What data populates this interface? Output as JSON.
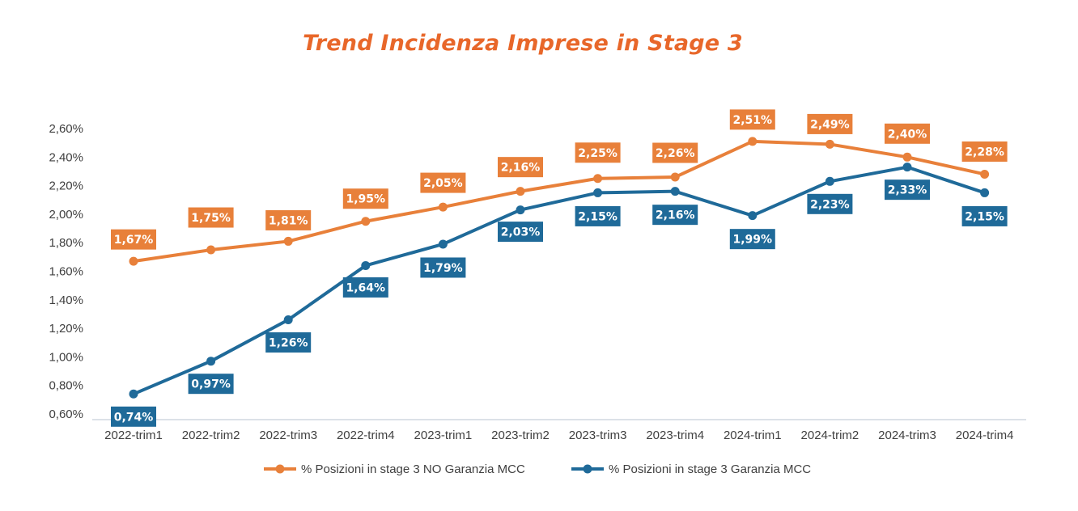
{
  "title": "Trend Incidenza Imprese in Stage 3",
  "chart_data": {
    "type": "line",
    "title": "Trend Incidenza Imprese in Stage 3",
    "xlabel": "",
    "ylabel": "",
    "ylim": [
      0.6,
      2.6
    ],
    "y_ticks": [
      "0,60%",
      "0,80%",
      "1,00%",
      "1,20%",
      "1,40%",
      "1,60%",
      "1,80%",
      "2,00%",
      "2,20%",
      "2,40%",
      "2,60%"
    ],
    "categories": [
      "2022-trim1",
      "2022-trim2",
      "2022-trim3",
      "2022-trim4",
      "2023-trim1",
      "2023-trim2",
      "2023-trim3",
      "2023-trim4",
      "2024-trim1",
      "2024-trim2",
      "2024-trim3",
      "2024-trim4"
    ],
    "grid": false,
    "legend_position": "bottom",
    "series": [
      {
        "name": "% Posizioni in stage 3 NO Garanzia MCC",
        "color": "#e8803a",
        "label_bg": "#e8803a",
        "values": [
          1.67,
          1.75,
          1.81,
          1.95,
          2.05,
          2.16,
          2.25,
          2.26,
          2.51,
          2.49,
          2.4,
          2.28
        ],
        "labels": [
          "1,67%",
          "1,75%",
          "1,81%",
          "1,95%",
          "2,05%",
          "2,16%",
          "2,25%",
          "2,26%",
          "2,51%",
          "2,49%",
          "2,40%",
          "2,28%"
        ]
      },
      {
        "name": "% Posizioni in stage 3 Garanzia MCC",
        "color": "#1f6a99",
        "label_bg": "#1f6a99",
        "values": [
          0.74,
          0.97,
          1.26,
          1.64,
          1.79,
          2.03,
          2.15,
          2.16,
          1.99,
          2.23,
          2.33,
          2.15
        ],
        "labels": [
          "0,74%",
          "0,97%",
          "1,26%",
          "1,64%",
          "1,79%",
          "2,03%",
          "2,15%",
          "2,16%",
          "1,99%",
          "2,23%",
          "2,33%",
          "2,15%"
        ]
      }
    ]
  }
}
